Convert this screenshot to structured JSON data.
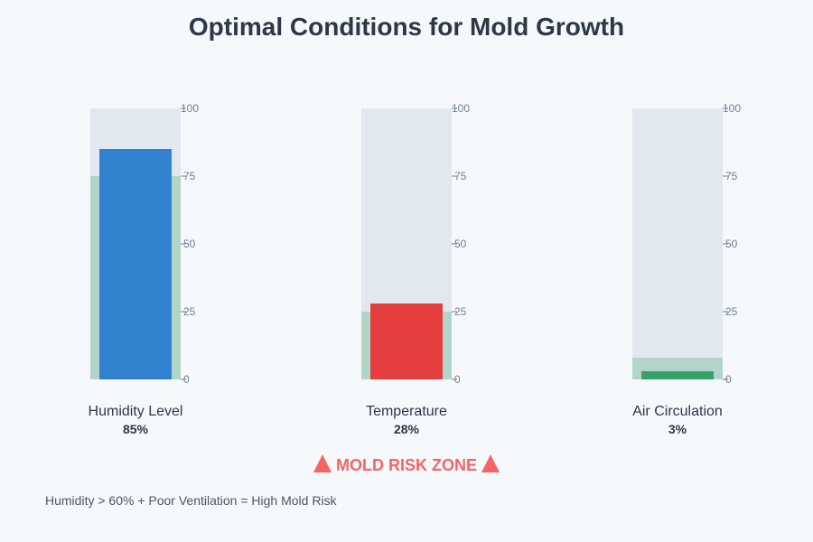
{
  "chart_data": {
    "type": "bar",
    "subtype": "bullet-gauge",
    "title": "Optimal Conditions for Mold Growth",
    "ylim": [
      0,
      100
    ],
    "ticks": [
      "0",
      "25",
      "50",
      "75",
      "100"
    ],
    "gauges": [
      {
        "label": "Humidity Level",
        "value": 85,
        "value_label": "85%",
        "optimal_range": [
          75,
          0
        ],
        "bar_color": "#3182ce"
      },
      {
        "label": "Temperature",
        "value": 28,
        "value_label": "28%",
        "optimal_range": [
          25,
          0
        ],
        "bar_color": "#e53e3e"
      },
      {
        "label": "Air Circulation",
        "value": 3,
        "value_label": "3%",
        "optimal_range": [
          8,
          0
        ],
        "bar_color": "#38a169"
      }
    ],
    "colors": {
      "track": "#e2e8f0",
      "zone": "#b2d5c8",
      "tick": "#718096"
    }
  },
  "risk_label": "MOLD RISK ZONE",
  "risk_color": "#f56565",
  "warning_icon": "warning-triangle",
  "note": "Humidity > 60% + Poor Ventilation = High Mold Risk"
}
